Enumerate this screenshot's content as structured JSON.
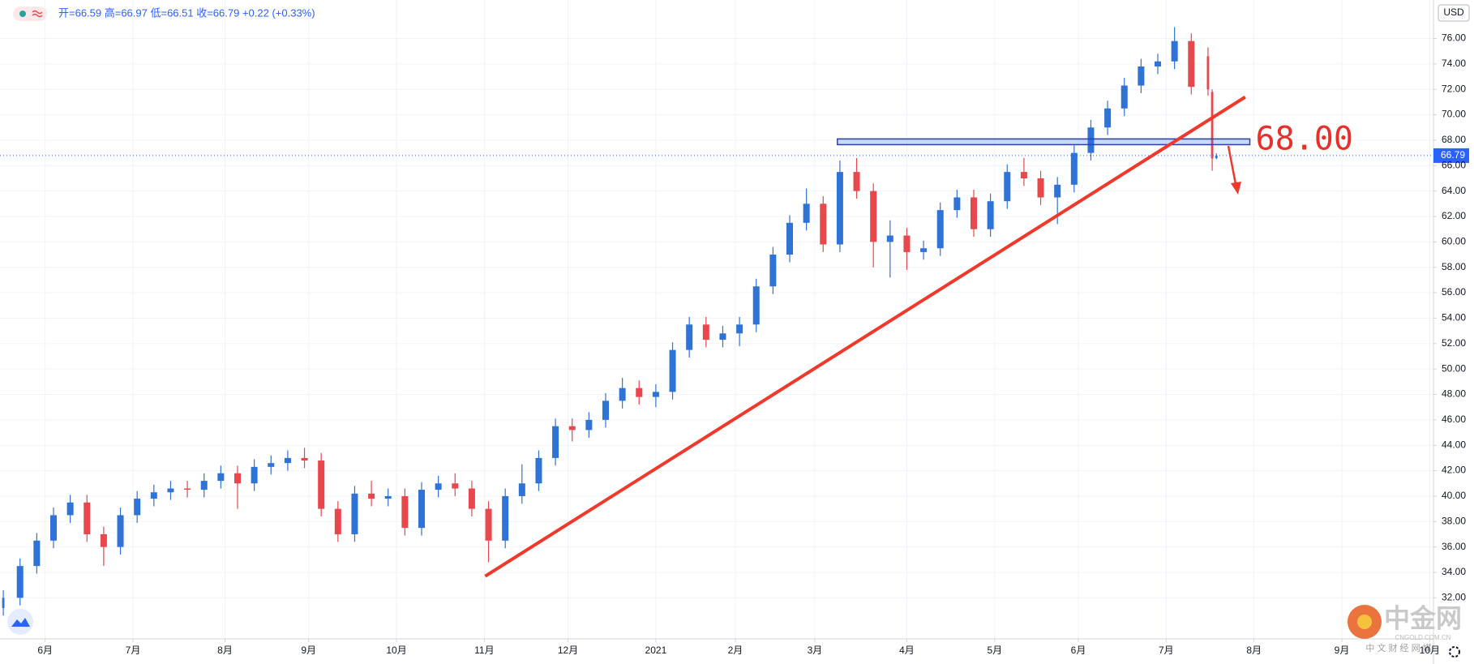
{
  "chart_data": {
    "type": "candlestick",
    "header": "开=66.59 高=66.97 低=66.51 收=66.79 +0.22 (+0.33%)",
    "currency": "USD",
    "up_color": "#2f73d6",
    "down_color": "#e8474c",
    "grid": true,
    "xlim": [
      -0.79,
      341.9
    ],
    "xticks": [
      {
        "value": 10,
        "label": "6月"
      },
      {
        "value": 31,
        "label": "7月"
      },
      {
        "value": 53,
        "label": "8月"
      },
      {
        "value": 73,
        "label": "9月"
      },
      {
        "value": 94,
        "label": "10月"
      },
      {
        "value": 115,
        "label": "11月"
      },
      {
        "value": 135,
        "label": "12月"
      },
      {
        "value": 156,
        "label": "2021"
      },
      {
        "value": 175,
        "label": "2月"
      },
      {
        "value": 194,
        "label": "3月"
      },
      {
        "value": 216,
        "label": "4月"
      },
      {
        "value": 237,
        "label": "5月"
      },
      {
        "value": 257,
        "label": "6月"
      },
      {
        "value": 278,
        "label": "7月"
      },
      {
        "value": 299,
        "label": "8月"
      },
      {
        "value": 320,
        "label": "9月"
      },
      {
        "value": 341,
        "label": "10月"
      }
    ],
    "ylim": [
      28.77,
      79.03
    ],
    "yticks": [
      {
        "value": 32,
        "label": "32.00"
      },
      {
        "value": 34,
        "label": "34.00"
      },
      {
        "value": 36,
        "label": "36.00"
      },
      {
        "value": 38,
        "label": "38.00"
      },
      {
        "value": 40,
        "label": "40.00"
      },
      {
        "value": 42,
        "label": "42.00"
      },
      {
        "value": 44,
        "label": "44.00"
      },
      {
        "value": 46,
        "label": "46.00"
      },
      {
        "value": 48,
        "label": "48.00"
      },
      {
        "value": 50,
        "label": "50.00"
      },
      {
        "value": 52,
        "label": "52.00"
      },
      {
        "value": 54,
        "label": "54.00"
      },
      {
        "value": 56,
        "label": "56.00"
      },
      {
        "value": 58,
        "label": "58.00"
      },
      {
        "value": 60,
        "label": "60.00"
      },
      {
        "value": 62,
        "label": "62.00"
      },
      {
        "value": 64,
        "label": "64.00"
      },
      {
        "value": 66,
        "label": "66.00"
      },
      {
        "value": 68,
        "label": "68.00"
      },
      {
        "value": 70,
        "label": "70.00"
      },
      {
        "value": 72,
        "label": "72.00"
      },
      {
        "value": 74,
        "label": "74.00"
      },
      {
        "value": 76,
        "label": "76.00"
      }
    ],
    "x": [
      0,
      4,
      8,
      12,
      16,
      20,
      24,
      28,
      32,
      36,
      40,
      44,
      48,
      52,
      56,
      60,
      64,
      68,
      72,
      76,
      80,
      84,
      88,
      92,
      96,
      100,
      104,
      108,
      112,
      116,
      120,
      124,
      128,
      132,
      136,
      140,
      144,
      148,
      152,
      156,
      160,
      164,
      168,
      172,
      176,
      180,
      184,
      188,
      192,
      196,
      200,
      204,
      208,
      212,
      216,
      220,
      224,
      228,
      232,
      236,
      240,
      244,
      248,
      252,
      256,
      260,
      264,
      268,
      272,
      276,
      280,
      284,
      288,
      289,
      290
    ],
    "open": [
      31.2,
      32.0,
      34.5,
      36.5,
      38.5,
      39.5,
      37.0,
      36.0,
      38.5,
      39.8,
      40.3,
      40.6,
      40.5,
      41.2,
      41.8,
      41.0,
      42.3,
      42.6,
      43.0,
      42.8,
      39.0,
      37.0,
      40.2,
      39.8,
      40.0,
      37.5,
      40.5,
      41.0,
      40.6,
      39.0,
      36.5,
      40.0,
      41.0,
      43.0,
      45.5,
      45.2,
      46.0,
      47.5,
      48.5,
      47.8,
      48.2,
      51.5,
      53.5,
      52.3,
      52.8,
      53.5,
      56.5,
      59.0,
      61.5,
      63.0,
      59.8,
      65.5,
      64.0,
      60.0,
      60.5,
      59.2,
      59.5,
      62.5,
      63.5,
      61.0,
      63.2,
      65.5,
      65.0,
      63.5,
      64.5,
      67.0,
      69.0,
      70.5,
      72.3,
      73.8,
      74.2,
      75.8,
      74.6,
      71.8,
      66.59
    ],
    "high": [
      32.6,
      35.1,
      37.1,
      39.1,
      40.1,
      40.1,
      37.6,
      39.1,
      40.4,
      40.9,
      41.2,
      41.2,
      41.8,
      42.4,
      42.4,
      42.9,
      43.2,
      43.6,
      43.8,
      43.4,
      39.6,
      40.8,
      41.2,
      40.6,
      40.6,
      41.1,
      41.6,
      41.8,
      41.2,
      39.6,
      40.6,
      42.5,
      43.6,
      46.1,
      46.1,
      46.6,
      48.1,
      49.3,
      49.1,
      48.8,
      52.1,
      54.1,
      54.1,
      53.4,
      54.1,
      57.1,
      59.6,
      62.1,
      64.2,
      63.6,
      66.4,
      66.6,
      64.6,
      61.7,
      61.1,
      60.1,
      63.1,
      64.1,
      64.1,
      63.8,
      66.1,
      66.6,
      65.6,
      65.1,
      67.6,
      69.6,
      71.1,
      72.9,
      74.4,
      74.8,
      76.9,
      76.4,
      75.3,
      72.0,
      66.97
    ],
    "low": [
      30.6,
      31.4,
      33.9,
      35.9,
      37.9,
      36.4,
      34.5,
      35.4,
      37.9,
      39.2,
      39.7,
      39.9,
      39.9,
      40.6,
      39.0,
      40.4,
      41.7,
      42.0,
      42.2,
      38.4,
      36.4,
      36.4,
      39.2,
      39.2,
      36.9,
      36.9,
      39.9,
      40.0,
      38.4,
      34.8,
      35.9,
      39.4,
      40.4,
      42.4,
      44.3,
      44.6,
      45.4,
      46.9,
      47.2,
      47.0,
      47.6,
      50.9,
      51.7,
      51.7,
      51.8,
      52.9,
      55.9,
      58.4,
      60.9,
      59.2,
      59.2,
      63.4,
      58.0,
      57.2,
      57.8,
      58.6,
      58.9,
      61.9,
      60.4,
      60.4,
      62.6,
      64.4,
      62.9,
      61.4,
      63.9,
      66.4,
      68.4,
      69.9,
      71.7,
      73.2,
      73.6,
      71.6,
      71.5,
      65.6,
      66.51
    ],
    "close": [
      32.0,
      34.5,
      36.5,
      38.5,
      39.5,
      37.0,
      36.0,
      38.5,
      39.8,
      40.3,
      40.6,
      40.5,
      41.2,
      41.8,
      41.0,
      42.3,
      42.6,
      43.0,
      42.8,
      39.0,
      37.0,
      40.2,
      39.8,
      40.0,
      37.5,
      40.5,
      41.0,
      40.6,
      39.0,
      36.5,
      40.0,
      41.0,
      43.0,
      45.5,
      45.2,
      46.0,
      47.5,
      48.5,
      47.8,
      48.2,
      51.5,
      53.5,
      52.3,
      52.8,
      53.5,
      56.5,
      59.0,
      61.5,
      63.0,
      59.8,
      65.5,
      64.0,
      60.0,
      60.5,
      59.2,
      59.5,
      62.5,
      63.5,
      61.0,
      63.2,
      65.5,
      65.0,
      63.5,
      64.5,
      67.0,
      69.0,
      70.5,
      72.3,
      73.8,
      74.2,
      75.8,
      72.2,
      72.0,
      66.57,
      66.79
    ],
    "last_price": 66.79,
    "trendline": {
      "color": "#f0392b",
      "x": [
        115.2,
        296.9
      ],
      "y": [
        33.7,
        71.4
      ]
    },
    "level": {
      "label": "68.00",
      "x": [
        199.4,
        298
      ],
      "y": [
        67.65,
        68.1
      ]
    },
    "watermark": [
      "中金网",
      "CNGOLD.COM.CN",
      "中 文 财 经 网 媒"
    ]
  }
}
